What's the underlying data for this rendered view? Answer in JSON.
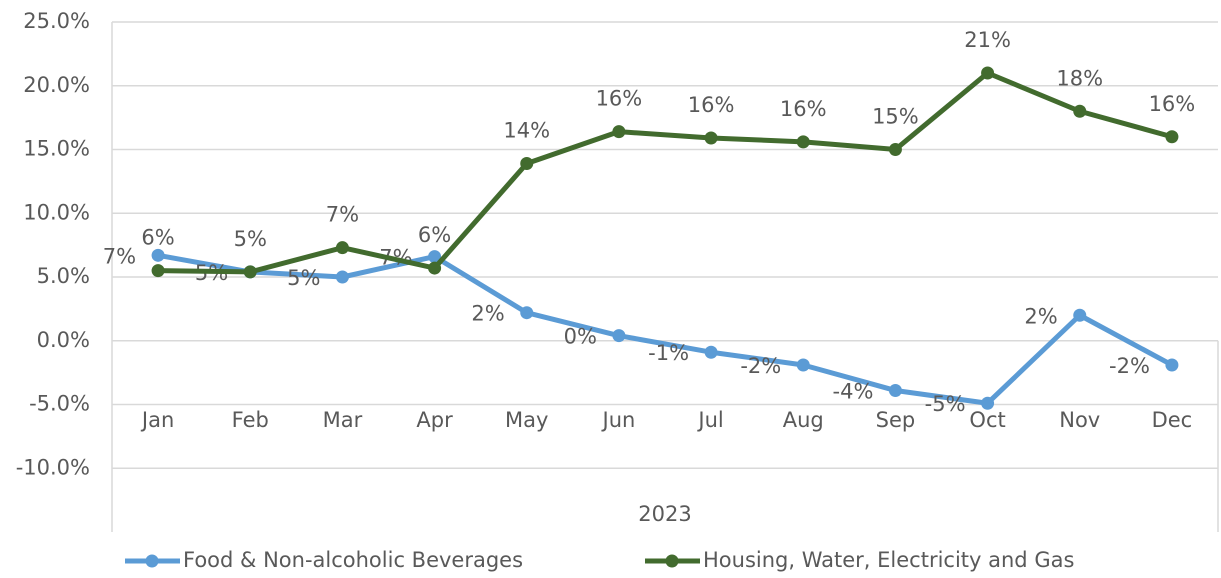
{
  "chart_data": {
    "type": "line",
    "categories": [
      "Jan",
      "Feb",
      "Mar",
      "Apr",
      "May",
      "Jun",
      "Jul",
      "Aug",
      "Sep",
      "Oct",
      "Nov",
      "Dec"
    ],
    "x_label": "2023",
    "series": [
      {
        "name": "Food & Non-alcoholic Beverages",
        "color": "#5b9bd5",
        "values": [
          6.7,
          5.4,
          5.0,
          6.6,
          2.2,
          0.4,
          -0.9,
          -1.9,
          -3.9,
          -4.9,
          2.0,
          -1.9
        ],
        "value_labels": [
          "7%",
          "5%",
          "5%",
          "7%",
          "2%",
          "0%",
          "-1%",
          "-2%",
          "-4%",
          "-5%",
          "2%",
          "-2%"
        ]
      },
      {
        "name": "Housing, Water, Electricity and Gas",
        "color": "#426b2e",
        "values": [
          5.5,
          5.4,
          7.3,
          5.7,
          13.9,
          16.4,
          15.9,
          15.6,
          15.0,
          21.0,
          18.0,
          16.0
        ],
        "value_labels": [
          "6%",
          "5%",
          "7%",
          "6%",
          "14%",
          "16%",
          "16%",
          "16%",
          "15%",
          "21%",
          "18%",
          "16%"
        ]
      }
    ],
    "ylim": [
      -15,
      25
    ],
    "yticks": [
      {
        "value": -10,
        "label": "-10.0%"
      },
      {
        "value": -5,
        "label": "-5.0%"
      },
      {
        "value": 0,
        "label": "0.0%"
      },
      {
        "value": 5,
        "label": "5.0%"
      },
      {
        "value": 10,
        "label": "10.0%"
      },
      {
        "value": 15,
        "label": "15.0%"
      },
      {
        "value": 20,
        "label": "20.0%"
      },
      {
        "value": 25,
        "label": "25.0%"
      }
    ],
    "grid": true,
    "legend": "bottom"
  }
}
